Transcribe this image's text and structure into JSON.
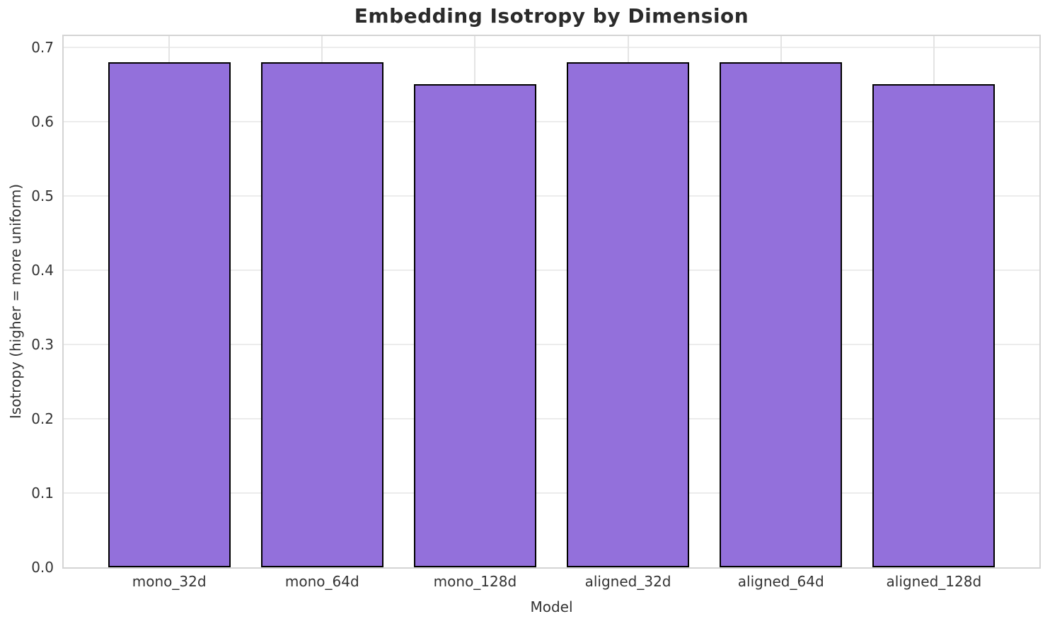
{
  "chart_data": {
    "type": "bar",
    "title": "Embedding Isotropy by Dimension",
    "xlabel": "Model",
    "ylabel": "Isotropy (higher = more uniform)",
    "categories": [
      "mono_32d",
      "mono_64d",
      "mono_128d",
      "aligned_32d",
      "aligned_64d",
      "aligned_128d"
    ],
    "values": [
      0.68,
      0.68,
      0.65,
      0.68,
      0.68,
      0.65
    ],
    "ytick_values": [
      0.0,
      0.1,
      0.2,
      0.3,
      0.4,
      0.5,
      0.6,
      0.7
    ],
    "ytick_labels": [
      "0.0",
      "0.1",
      "0.2",
      "0.3",
      "0.4",
      "0.5",
      "0.6",
      "0.7"
    ],
    "ylim": [
      0,
      0.715
    ],
    "xlim": [
      -0.69,
      5.69
    ],
    "bar_width_units": 0.8,
    "grid": true,
    "legend": "none",
    "colors": {
      "bar_fill": "#9370DB",
      "bar_edge": "#000000",
      "grid_line": "#ececec",
      "spine": "#d4d4d4",
      "text": "#333333",
      "title_text": "#2b2b2b",
      "background": "#ffffff"
    }
  }
}
